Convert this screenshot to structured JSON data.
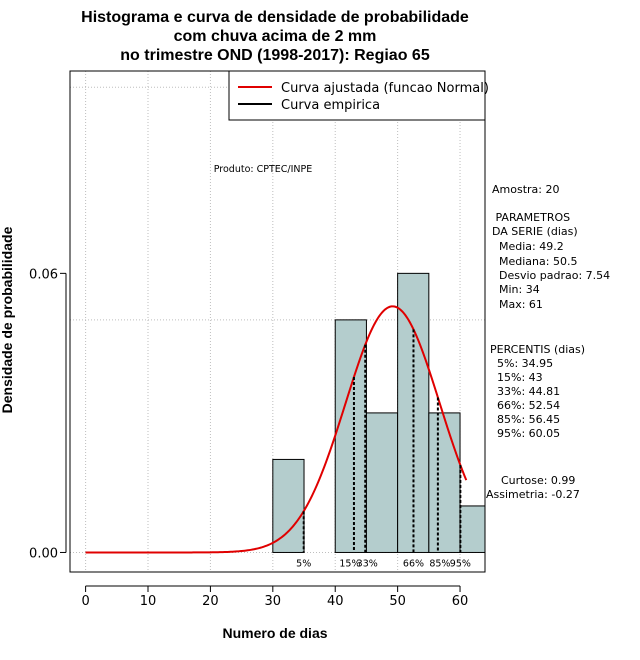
{
  "chart_data": {
    "type": "bar",
    "title_lines": [
      "Histograma e curva de densidade de probabilidade",
      "com chuva acima de 2 mm",
      "no trimestre OND (1998-2017): Regiao 65"
    ],
    "xlabel": "Numero de dias",
    "ylabel": "Densidade de probabilidade",
    "xlim": [
      -2.5,
      64
    ],
    "ylim": [
      -0.0042,
      0.1035
    ],
    "x_ticks": [
      0,
      10,
      20,
      30,
      40,
      50,
      60
    ],
    "y_ticks": [
      0.0,
      0.06
    ],
    "y_tick_labels": [
      "0.00",
      "0.06"
    ],
    "grid": true,
    "grid_x": [
      0,
      10,
      20,
      30,
      40,
      50,
      60
    ],
    "grid_y": [
      0.0,
      0.05,
      0.1
    ],
    "bins": [
      {
        "x0": 30,
        "x1": 35,
        "density": 0.02
      },
      {
        "x0": 40,
        "x1": 45,
        "density": 0.05
      },
      {
        "x0": 45,
        "x1": 50,
        "density": 0.03
      },
      {
        "x0": 50,
        "x1": 55,
        "density": 0.06
      },
      {
        "x0": 55,
        "x1": 60,
        "density": 0.03
      },
      {
        "x0": 60,
        "x1": 65,
        "density": 0.01
      }
    ],
    "fitted_curve": {
      "distribution": "normal",
      "mean": 49.2,
      "sd": 7.54,
      "x_from": 0,
      "x_to": 61
    },
    "percentiles": [
      {
        "label": "5%",
        "value": 34.95
      },
      {
        "label": "15%",
        "value": 43
      },
      {
        "label": "33%",
        "value": 44.81
      },
      {
        "label": "66%",
        "value": 52.54
      },
      {
        "label": "85%",
        "value": 56.45
      },
      {
        "label": "95%",
        "value": 60.05
      }
    ],
    "legend": {
      "position": "top-right",
      "entries": [
        {
          "label": "Curva ajustada (funcao Normal)",
          "color": "#e00000"
        },
        {
          "label": "Curva empirica",
          "color": "#000000"
        }
      ]
    },
    "colors": {
      "bar_fill": "#b4cdcd",
      "curve": "#e00000",
      "grid": "#bebebe"
    }
  },
  "annotations": {
    "product": "Produto: CPTEC/INPE",
    "stats_lines": [
      "Amostra: 20",
      " PARAMETROS",
      "DA SERIE (dias)",
      "  Media: 49.2",
      "  Mediana: 50.5",
      "  Desvio padrao: 7.54",
      "  Min: 34",
      "  Max: 61",
      "PERCENTIS (dias)",
      "  5%: 34.95",
      "  15%: 43",
      "  33%: 44.81",
      "  66%: 52.54",
      "  85%: 56.45",
      "  95%: 60.05",
      "Curtose: 0.99",
      "Assimetria: -0.27"
    ]
  }
}
